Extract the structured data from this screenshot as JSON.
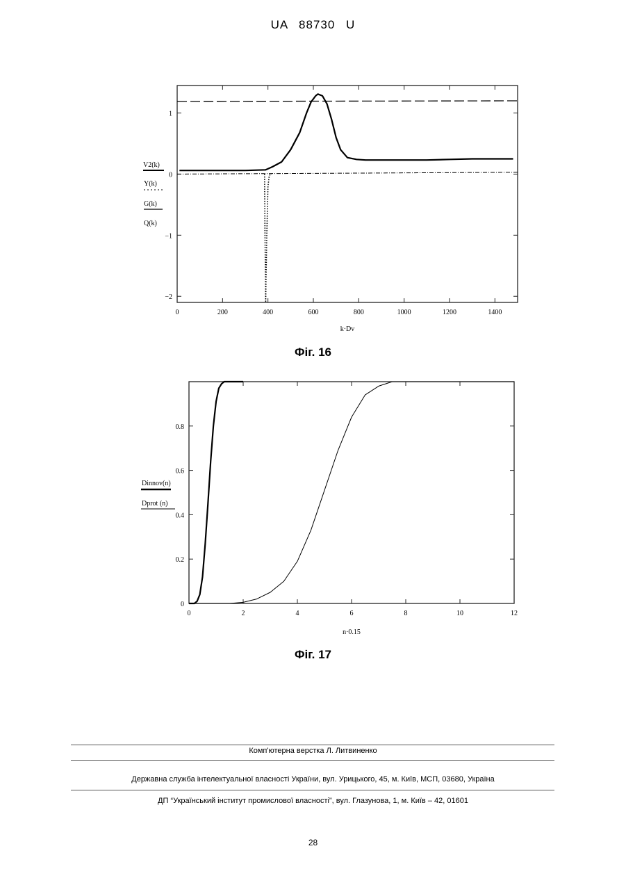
{
  "header": {
    "doc_number": "UA   88730   U"
  },
  "figure16": {
    "caption": "Фіг. 16",
    "xlabel": "k·Dv",
    "legend": [
      "V2(k)",
      "Y(k)",
      "G(k)",
      "Q(k)"
    ]
  },
  "figure17": {
    "caption": "Фіг. 17",
    "xlabel": "n·0.15",
    "legend": [
      "Dinnov(n)",
      "Dprot (n)"
    ]
  },
  "chart_data": [
    {
      "type": "line",
      "xlim": [
        0,
        1500
      ],
      "ylim": [
        -2.1,
        1.45
      ],
      "x_ticks": [
        0,
        200,
        400,
        600,
        800,
        1000,
        1200,
        1400
      ],
      "y_ticks": [
        1,
        0,
        -1,
        -2
      ],
      "grid": false,
      "series": [
        {
          "name": "V2(k)",
          "style": "solid-thick",
          "x": [
            10,
            100,
            200,
            300,
            390,
            420,
            460,
            500,
            540,
            570,
            590,
            610,
            620,
            640,
            660,
            680,
            700,
            720,
            750,
            790,
            830,
            900,
            1000,
            1100,
            1200,
            1300,
            1400,
            1480
          ],
          "y": [
            0.06,
            0.06,
            0.06,
            0.06,
            0.07,
            0.12,
            0.2,
            0.4,
            0.68,
            1.0,
            1.18,
            1.28,
            1.31,
            1.28,
            1.15,
            0.9,
            0.6,
            0.4,
            0.27,
            0.24,
            0.23,
            0.23,
            0.23,
            0.23,
            0.24,
            0.25,
            0.25,
            0.25
          ]
        },
        {
          "name": "Y(k)",
          "style": "dash-dot",
          "x": [
            0,
            1500
          ],
          "y": [
            0,
            0.03
          ]
        },
        {
          "name": "G(k)",
          "style": "dashed",
          "x": [
            0,
            1500
          ],
          "y": [
            1.19,
            1.2
          ]
        },
        {
          "name": "Q(k)",
          "style": "dotted",
          "x": [
            385,
            387,
            390,
            395,
            400,
            405,
            410,
            415
          ],
          "y": [
            0,
            -1.0,
            -2.1,
            -1.0,
            -0.2,
            -0.05,
            0,
            0
          ]
        }
      ]
    },
    {
      "type": "line",
      "xlim": [
        0,
        12
      ],
      "ylim": [
        0,
        1
      ],
      "x_ticks": [
        0,
        2,
        4,
        6,
        8,
        10,
        12
      ],
      "y_ticks": [
        0,
        0.2,
        0.4,
        0.6,
        0.8
      ],
      "grid": false,
      "series": [
        {
          "name": "Dinnov(n)",
          "style": "solid-thick",
          "x": [
            0,
            0.2,
            0.3,
            0.4,
            0.5,
            0.6,
            0.7,
            0.8,
            0.9,
            1.0,
            1.1,
            1.2,
            1.3,
            1.5,
            2.0
          ],
          "y": [
            0,
            0,
            0.01,
            0.04,
            0.12,
            0.27,
            0.45,
            0.64,
            0.8,
            0.91,
            0.97,
            0.99,
            1.0,
            1.0,
            1.0
          ]
        },
        {
          "name": "Dprot (n)",
          "style": "solid-thin",
          "x": [
            0,
            1.5,
            2.0,
            2.5,
            3.0,
            3.5,
            4.0,
            4.5,
            5.0,
            5.5,
            6.0,
            6.5,
            7.0,
            7.5,
            8.0,
            12.0
          ],
          "y": [
            0,
            0,
            0.005,
            0.02,
            0.05,
            0.1,
            0.19,
            0.33,
            0.51,
            0.69,
            0.84,
            0.94,
            0.98,
            1.0,
            1.0,
            1.0
          ]
        }
      ]
    }
  ],
  "footer": {
    "layout_credit": "Комп'ютерна верстка Л. Литвиненко",
    "agency": "Державна служба інтелектуальної власності України, вул. Урицького, 45, м. Київ, МСП, 03680, Україна",
    "institute": "ДП “Український інститут промислової власності”, вул. Глазунова, 1, м. Київ – 42, 01601",
    "page_number": "28"
  }
}
